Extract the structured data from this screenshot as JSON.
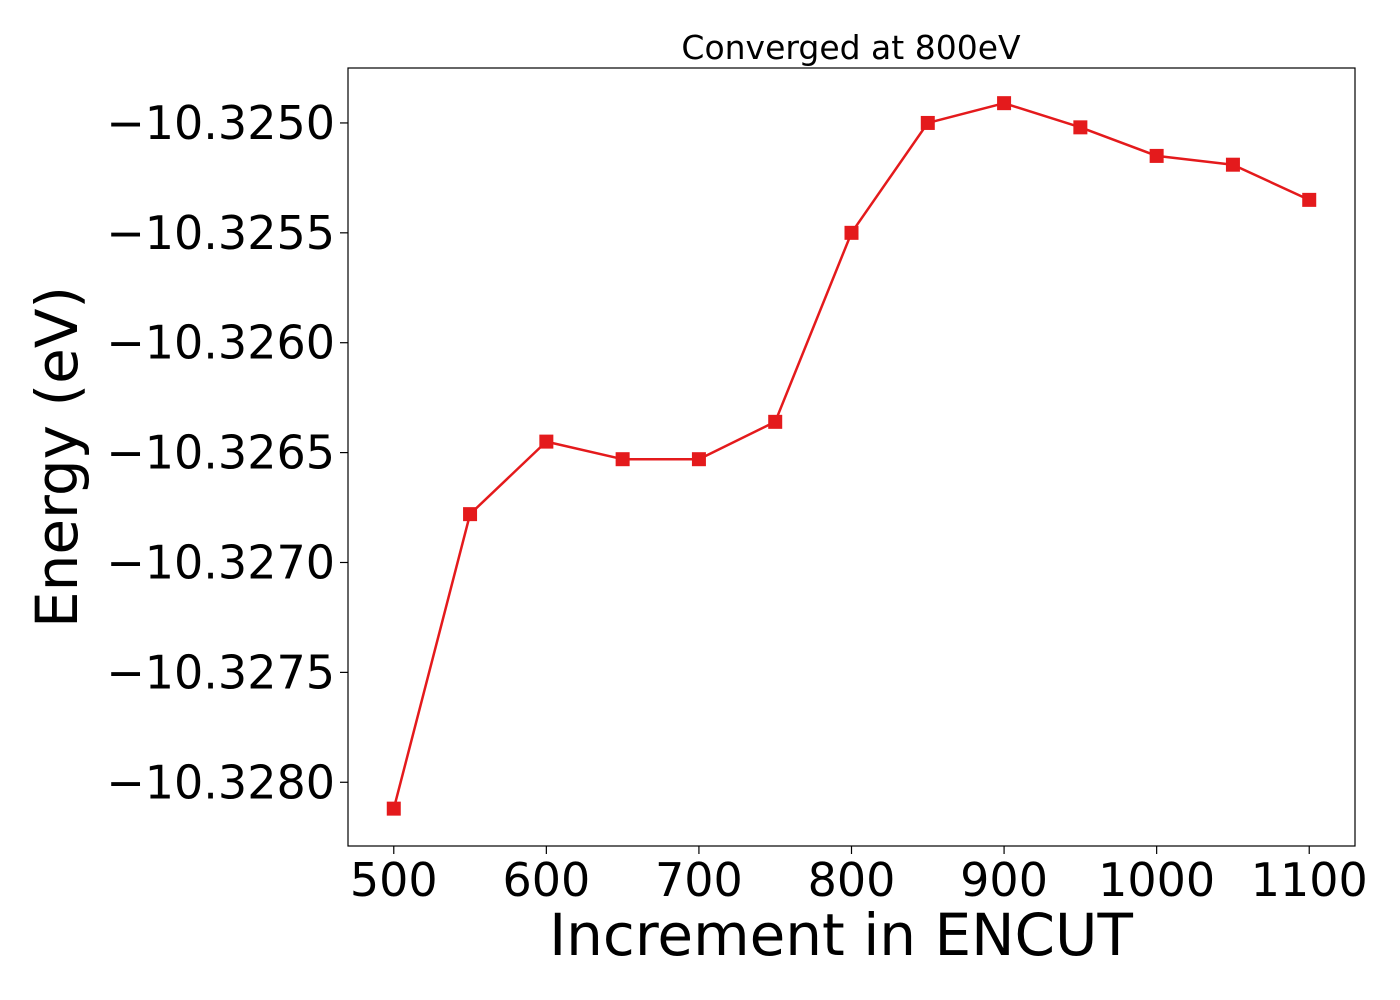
{
  "chart_data": {
    "type": "line",
    "title": "Converged at 800eV",
    "xlabel": "Increment in ENCUT",
    "ylabel": "Energy (eV)",
    "x": [
      500,
      550,
      600,
      650,
      700,
      750,
      800,
      850,
      900,
      950,
      1000,
      1050,
      1100
    ],
    "series": [
      {
        "values": [
          -10.32812,
          -10.32678,
          -10.32645,
          -10.32653,
          -10.32653,
          -10.32636,
          -10.3255,
          -10.325,
          -10.32491,
          -10.32502,
          -10.32515,
          -10.32519,
          -10.32535
        ],
        "color": "#e41a1c",
        "marker": "square"
      }
    ],
    "xticks": [
      500,
      600,
      700,
      800,
      900,
      1000,
      1100
    ],
    "xtick_labels": [
      "500",
      "600",
      "700",
      "800",
      "900",
      "1000",
      "1100"
    ],
    "yticks": [
      -10.325,
      -10.3255,
      -10.326,
      -10.3265,
      -10.327,
      -10.3275,
      -10.328
    ],
    "ytick_labels": [
      "−10.3250",
      "−10.3255",
      "−10.3260",
      "−10.3265",
      "−10.3270",
      "−10.3275",
      "−10.3280"
    ],
    "xlim": [
      470,
      1130
    ],
    "ylim": [
      -10.32829,
      -10.32475
    ],
    "grid": false,
    "legend": "none"
  }
}
